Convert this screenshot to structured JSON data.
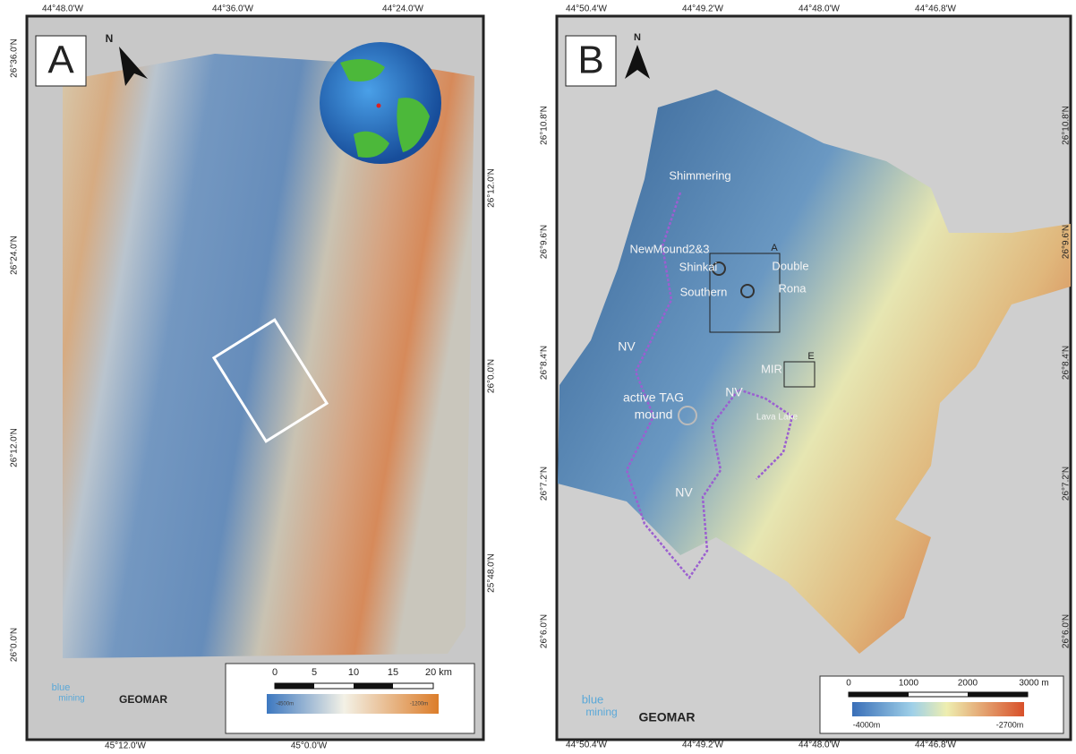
{
  "panel_a": {
    "label": "A",
    "north": "N",
    "top_ticks": [
      "44°48.0'W",
      "44°36.0'W",
      "44°24.0'W"
    ],
    "left_ticks": [
      "26°36.0'N",
      "26°24.0'N",
      "26°12.0'N",
      "26°0.0'N"
    ],
    "right_ticks": [
      "26°12.0'N",
      "26°0.0'N",
      "25°48.0'N"
    ],
    "bottom_ticks": [
      "45°12.0'W",
      "45°0.0'W"
    ],
    "scale_ticks": [
      "0",
      "5",
      "10",
      "15",
      "20 km"
    ],
    "colorbar_labels": [
      "-4500m",
      "-1200m"
    ],
    "logos": [
      "blue",
      "mining",
      "GEOMAR"
    ]
  },
  "panel_b": {
    "label": "B",
    "north": "N",
    "top_ticks": [
      "44°50.4'W",
      "44°49.2'W",
      "44°48.0'W",
      "44°46.8'W"
    ],
    "left_ticks": [
      "26°10.8'N",
      "26°9.6'N",
      "26°8.4'N",
      "26°7.2'N",
      "26°6.0'N"
    ],
    "right_ticks": [
      "26°10.8'N",
      "26°9.6'N",
      "26°8.4'N",
      "26°7.2'N",
      "26°6.0'N"
    ],
    "bottom_ticks": [
      "44°50.4'W",
      "44°49.2'W",
      "44°48.0'W",
      "44°46.8'W"
    ],
    "site_labels": [
      "Shimmering",
      "NewMound2&3",
      "Shinkai",
      "Double",
      "Southern",
      "Rona",
      "A",
      "NV",
      "MIR",
      "E",
      "NV",
      "active TAG",
      "mound",
      "Lava Lake",
      "NV"
    ],
    "scale_ticks": [
      "0",
      "1000",
      "2000",
      "3000 m"
    ],
    "colorbar_labels": [
      "-4000m",
      "-2700m"
    ],
    "logos": [
      "blue",
      "mining",
      "GEOMAR"
    ]
  }
}
